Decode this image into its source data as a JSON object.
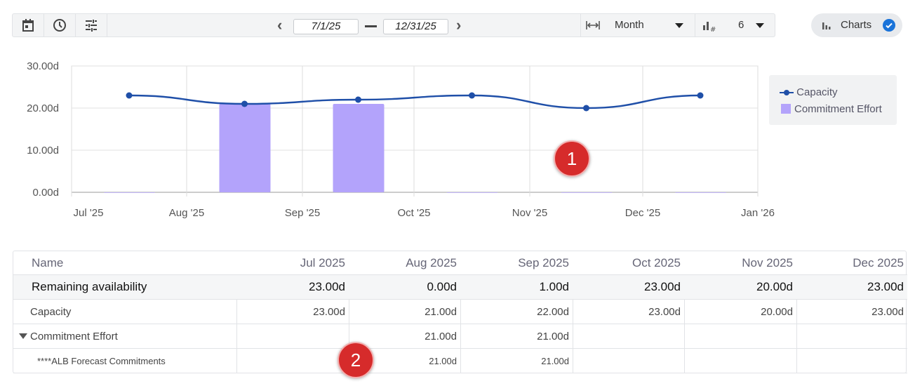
{
  "toolbar": {
    "icons": [
      "calendar-icon",
      "clock-icon",
      "sliders-icon"
    ],
    "start_date": "7/1/25",
    "end_date": "12/31/25",
    "period_select": "Month",
    "count_select": "6",
    "charts_toggle_label": "Charts",
    "charts_toggle_checked": true
  },
  "chart_data": {
    "type": "bar+line",
    "x_ticks": [
      "Jul '25",
      "Aug '25",
      "Sep '25",
      "Oct '25",
      "Nov '25",
      "Dec '25",
      "Jan '26"
    ],
    "y_ticks": [
      "0.00d",
      "10.00d",
      "20.00d",
      "30.00d"
    ],
    "ylim": [
      0,
      30
    ],
    "categories": [
      "Jul 2025",
      "Aug 2025",
      "Sep 2025",
      "Oct 2025",
      "Nov 2025",
      "Dec 2025"
    ],
    "series": [
      {
        "name": "Capacity",
        "type": "line",
        "color": "#1f4fa8",
        "values": [
          23,
          21,
          22,
          23,
          20,
          23
        ]
      },
      {
        "name": "Commitment Effort",
        "type": "bar",
        "color": "#b3a3fb",
        "values": [
          0,
          21,
          21,
          0,
          0,
          0
        ]
      }
    ],
    "legend_position": "right",
    "grid": true
  },
  "table": {
    "headers": [
      "Name",
      "Jul 2025",
      "Aug 2025",
      "Sep 2025",
      "Oct 2025",
      "Nov 2025",
      "Dec 2025"
    ],
    "rows": [
      {
        "name": "Remaining availability",
        "values": [
          "23.00d",
          "0.00d",
          "1.00d",
          "23.00d",
          "20.00d",
          "23.00d"
        ]
      },
      {
        "name": "Capacity",
        "values": [
          "23.00d",
          "21.00d",
          "22.00d",
          "23.00d",
          "20.00d",
          "23.00d"
        ]
      },
      {
        "name": "Commitment Effort",
        "values": [
          "",
          "21.00d",
          "21.00d",
          "",
          "",
          ""
        ]
      },
      {
        "name": "****ALB Forecast Commitments",
        "values": [
          "",
          "21.00d",
          "21.00d",
          "",
          "",
          ""
        ]
      }
    ]
  },
  "annotations": [
    "1",
    "2"
  ]
}
